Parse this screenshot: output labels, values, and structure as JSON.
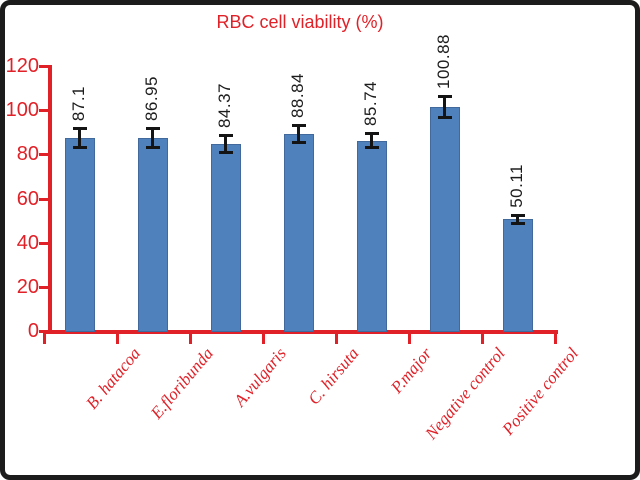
{
  "chart_data": {
    "type": "bar",
    "title": "RBC cell viability (%)",
    "categories": [
      "B. hatacoa",
      "E.floribunda",
      "A.vulgaris",
      "C. hirsuta",
      "P.major",
      "Negative control",
      "Positive control"
    ],
    "values": [
      87.1,
      86.95,
      84.37,
      88.84,
      85.74,
      100.88,
      50.11
    ],
    "value_labels": [
      "87.1",
      "86.95",
      "84.37",
      "88.84",
      "85.74",
      "100.88",
      "50.11"
    ],
    "errors": [
      4.5,
      4.5,
      4,
      4,
      3.5,
      5,
      2
    ],
    "y_ticks": [
      0,
      20,
      40,
      60,
      80,
      100,
      120
    ],
    "ylim": [
      0,
      120
    ],
    "xlabel": "",
    "ylabel": "",
    "grid": false,
    "legend": null,
    "error_bars": true,
    "colors": {
      "bar_fill": "#4f81bd",
      "bar_border": "#42699b",
      "axis": "#e02128",
      "tick_label": "#e02128",
      "category_label": "#e02128",
      "title": "#e02128",
      "value_label": "#1c1c1c",
      "error_bar": "#141414",
      "frame_border": "#1c1c1c",
      "background": "#ffffff"
    }
  }
}
